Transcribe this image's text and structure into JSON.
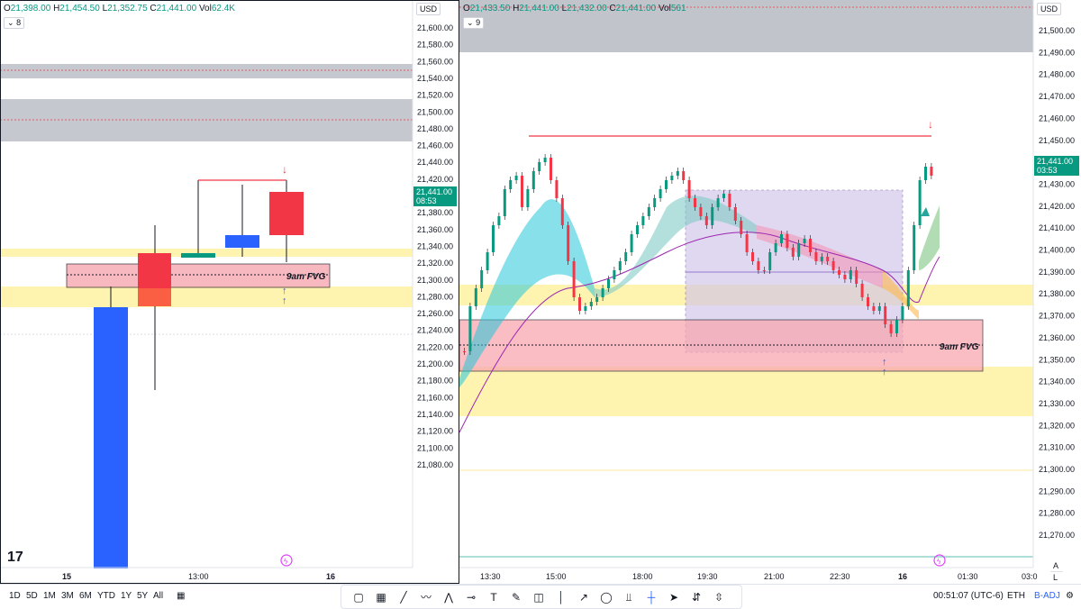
{
  "left_chart": {
    "ohlc": {
      "o_label": "O",
      "o": "21,398.00",
      "h_label": "H",
      "h": "21,454.50",
      "l_label": "L",
      "l": "21,352.75",
      "c_label": "C",
      "c": "21,441.00",
      "vol_label": "Vol",
      "vol": "62.4K"
    },
    "interval_badge": "8",
    "currency": "USD",
    "y_ticks": [
      "21,600.00",
      "21,580.00",
      "21,560.00",
      "21,540.00",
      "21,520.00",
      "21,500.00",
      "21,480.00",
      "21,460.00",
      "21,440.00",
      "21,420.00",
      "21,400.00",
      "21,380.00",
      "21,360.00",
      "21,340.00",
      "21,320.00",
      "21,300.00",
      "21,280.00",
      "21,260.00",
      "21,240.00",
      "21,220.00",
      "21,200.00",
      "21,180.00",
      "21,160.00",
      "21,140.00",
      "21,120.00",
      "21,100.00",
      "21,080.00"
    ],
    "x_ticks": [
      "15",
      "13:00",
      "16"
    ],
    "last_price": "21,441.00",
    "countdown": "08:53",
    "fvg_label": "9am FVG"
  },
  "right_chart": {
    "ohlc": {
      "o_label": "O",
      "o": "21,433.50",
      "h_label": "H",
      "h": "21,441.00",
      "l_label": "L",
      "l": "21,432.00",
      "c_label": "C",
      "c": "21,441.00",
      "vol_label": "Vol",
      "vol": "561"
    },
    "interval_badge": "9",
    "currency": "USD",
    "y_ticks": [
      "21,500.00",
      "21,490.00",
      "21,480.00",
      "21,470.00",
      "21,460.00",
      "21,450.00",
      "21,440.00",
      "21,430.00",
      "21,420.00",
      "21,410.00",
      "21,400.00",
      "21,390.00",
      "21,380.00",
      "21,370.00",
      "21,360.00",
      "21,350.00",
      "21,340.00",
      "21,330.00",
      "21,320.00",
      "21,310.00",
      "21,300.00",
      "21,290.00",
      "21,280.00",
      "21,270.00"
    ],
    "x_ticks": [
      "13:30",
      "15:00",
      "18:00",
      "19:30",
      "21:00",
      "22:30",
      "16",
      "01:30",
      "03:0"
    ],
    "last_price": "21,441.00",
    "countdown": "03:53",
    "fvg_label": "9am FVG",
    "axis_mode_labels": [
      "A",
      "L"
    ]
  },
  "bottom_bar": {
    "timeframes": [
      "1D",
      "5D",
      "1M",
      "3M",
      "6M",
      "YTD",
      "1Y",
      "5Y",
      "All"
    ],
    "tools": [
      "rectangle-icon",
      "grid-icon",
      "trendline-icon",
      "wave-icon",
      "zigzag-icon",
      "horizontal-ray-icon",
      "text-icon",
      "brush-icon",
      "callout-icon",
      "vertical-line-icon",
      "arrow-line-icon",
      "circle-icon",
      "price-range-icon",
      "crosshair-icon",
      "cursor-icon",
      "long-position-icon",
      "short-position-icon"
    ],
    "clock": "00:51:07 (UTC-6)",
    "session": "ETH",
    "adjustment": "B-ADJ"
  },
  "colors": {
    "up": "#089981",
    "down": "#f23645",
    "blue_candle": "#2962ff",
    "fvg_fill": "#f7a7b0",
    "yellow_zone": "#fff3b0",
    "grey_zone": "#b2b5be",
    "purple_box": "#d1c4e9"
  }
}
